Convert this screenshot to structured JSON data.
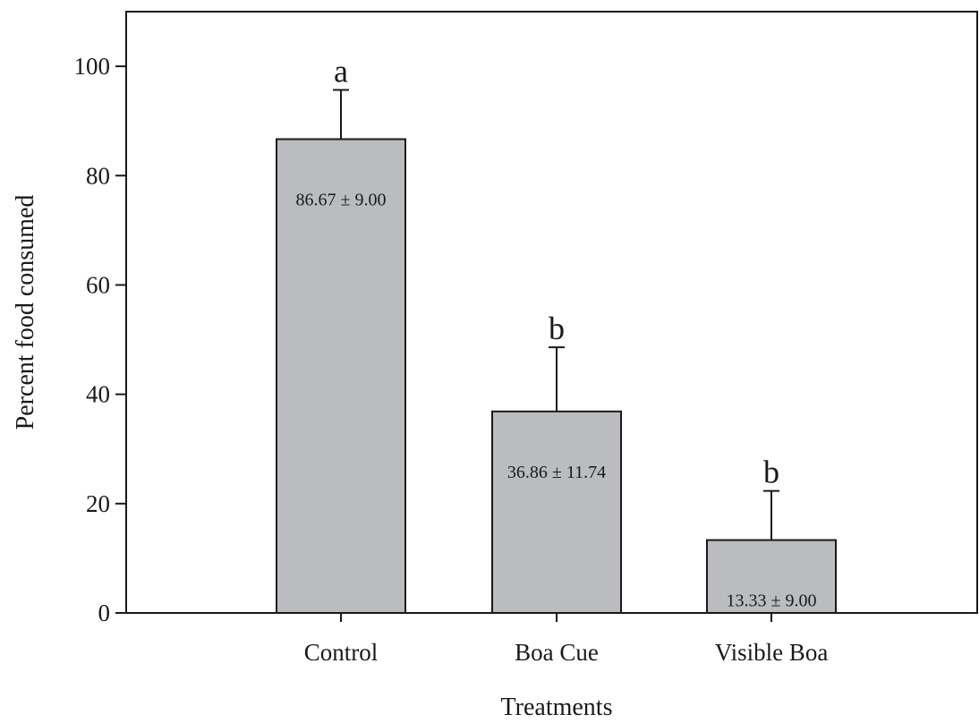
{
  "chart_data": {
    "type": "bar",
    "title": "",
    "xlabel": "Treatments",
    "ylabel": "Percent food consumed",
    "categories": [
      "Control",
      "Boa Cue",
      "Visible Boa"
    ],
    "values": [
      86.67,
      36.86,
      13.33
    ],
    "errors": [
      9.0,
      11.74,
      9.0
    ],
    "value_labels": [
      "86.67 ± 9.00",
      "36.86 ± 11.74",
      "13.33 ± 9.00"
    ],
    "significance_letters": [
      "a",
      "b",
      "b"
    ],
    "ylim": [
      0,
      110
    ],
    "yticks": [
      0,
      20,
      40,
      60,
      80,
      100
    ],
    "ytick_labels": [
      "0",
      "20",
      "40",
      "60",
      "80",
      "100"
    ],
    "grid": false,
    "legend": "none",
    "colors": {
      "bar_fill": "#bbbcc0",
      "stroke": "#1a1a1a"
    }
  }
}
